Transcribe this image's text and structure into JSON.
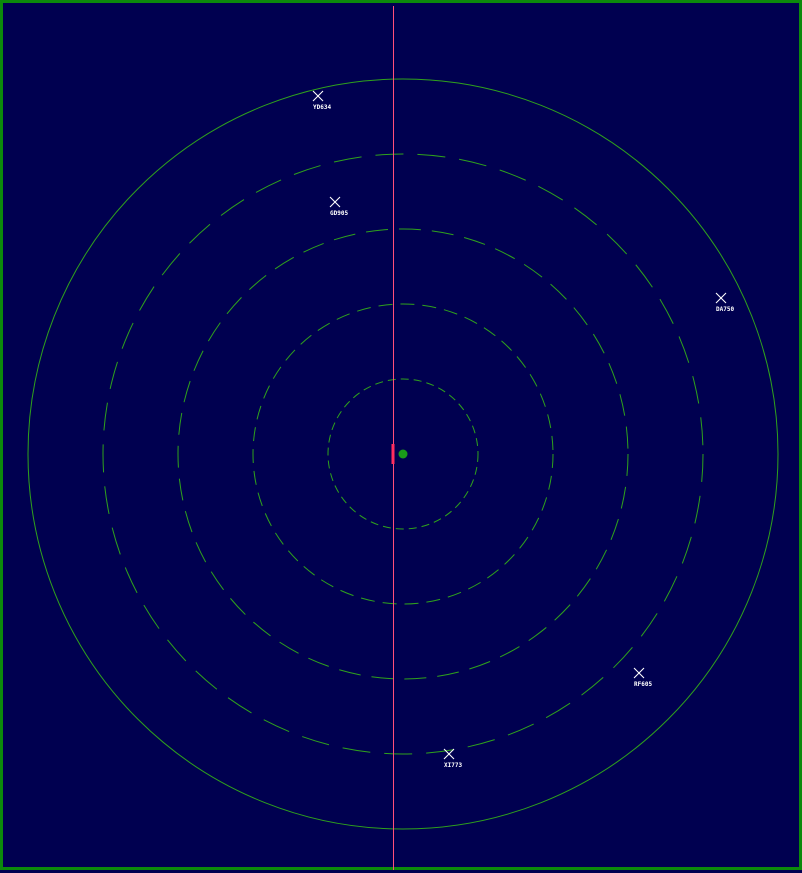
{
  "radar": {
    "background": "#000050",
    "frame_color": "#0c8a0c",
    "ring_color": "#2fa21c",
    "sweep_color": "#ff4f7a",
    "center_color": "#1a9a1a"
  },
  "aircraft": [
    {
      "callsign": "YD634",
      "icon": "cross-marker-icon"
    },
    {
      "callsign": "GD905",
      "icon": "cross-marker-icon"
    },
    {
      "callsign": "DA750",
      "icon": "cross-marker-icon"
    },
    {
      "callsign": "RF605",
      "icon": "cross-marker-icon"
    },
    {
      "callsign": "XI773",
      "icon": "cross-marker-icon"
    }
  ]
}
